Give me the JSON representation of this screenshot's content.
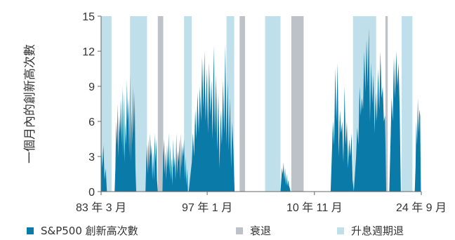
{
  "colors": {
    "series": "#0a7ba8",
    "recession": "#bcc2c7",
    "hike": "#bfe0ea",
    "axis": "#666666",
    "text": "#333333"
  },
  "chart_data": {
    "type": "area",
    "title": "",
    "ylabel": "一個月內的創新高次數",
    "xlabel": "",
    "ylim": [
      0,
      15
    ],
    "yticks": [
      0,
      3,
      6,
      9,
      12,
      15
    ],
    "xlim": [
      1983.25,
      2024.75
    ],
    "xticks": [
      {
        "x": 1983.25,
        "label": "83 年 3 月"
      },
      {
        "x": 1997.0,
        "label": "97 年 1 月"
      },
      {
        "x": 2010.9,
        "label": "10 年 11 月"
      },
      {
        "x": 2024.75,
        "label": "24 年 9 月"
      }
    ],
    "grid": false,
    "legend_placement": "bottom",
    "bands": [
      {
        "type": "hike",
        "start": 1983.3,
        "end": 1984.6
      },
      {
        "type": "hike",
        "start": 1987.0,
        "end": 1989.2
      },
      {
        "type": "recession",
        "start": 1990.6,
        "end": 1991.3
      },
      {
        "type": "hike",
        "start": 1994.0,
        "end": 1995.0
      },
      {
        "type": "hike",
        "start": 1999.5,
        "end": 2000.5
      },
      {
        "type": "recession",
        "start": 2001.2,
        "end": 2001.9
      },
      {
        "type": "hike",
        "start": 2004.5,
        "end": 2006.5
      },
      {
        "type": "recession",
        "start": 2007.9,
        "end": 2009.5
      },
      {
        "type": "hike",
        "start": 2015.9,
        "end": 2018.9
      },
      {
        "type": "recession",
        "start": 2020.1,
        "end": 2020.4
      },
      {
        "type": "hike",
        "start": 2022.2,
        "end": 2023.6
      }
    ],
    "series": [
      {
        "name": "S&P500 創新高次數",
        "x": [
          1983.25,
          1983.4,
          1983.55,
          1983.7,
          1983.85,
          1984.0,
          1984.5,
          1985.0,
          1985.1,
          1985.2,
          1985.3,
          1985.4,
          1985.5,
          1985.6,
          1985.7,
          1985.8,
          1985.9,
          1986.0,
          1986.1,
          1986.2,
          1986.3,
          1986.4,
          1986.5,
          1986.6,
          1986.7,
          1986.8,
          1986.9,
          1987.0,
          1987.1,
          1987.2,
          1987.3,
          1987.4,
          1987.5,
          1987.6,
          1987.7,
          1987.8,
          1988.5,
          1989.0,
          1989.1,
          1989.2,
          1989.3,
          1989.4,
          1989.5,
          1989.6,
          1989.7,
          1989.8,
          1989.9,
          1990.0,
          1990.1,
          1990.2,
          1990.3,
          1990.4,
          1990.5,
          1990.6,
          1991.0,
          1991.2,
          1991.3,
          1991.4,
          1991.5,
          1991.6,
          1991.7,
          1991.8,
          1991.9,
          1992.0,
          1992.1,
          1992.2,
          1992.3,
          1992.4,
          1992.5,
          1992.6,
          1992.7,
          1992.8,
          1992.9,
          1993.0,
          1993.1,
          1993.2,
          1993.3,
          1993.4,
          1993.5,
          1993.6,
          1993.7,
          1993.8,
          1993.9,
          1994.0,
          1994.1,
          1994.2,
          1994.3,
          1994.4,
          1994.5,
          1994.6,
          1995.0,
          1995.15,
          1995.3,
          1995.45,
          1995.6,
          1995.75,
          1995.9,
          1996.05,
          1996.2,
          1996.35,
          1996.5,
          1996.65,
          1996.8,
          1996.95,
          1997.1,
          1997.25,
          1997.4,
          1997.55,
          1997.7,
          1997.85,
          1998.0,
          1998.15,
          1998.3,
          1998.45,
          1998.6,
          1998.75,
          1998.9,
          1999.05,
          1999.2,
          1999.35,
          1999.5,
          1999.65,
          1999.8,
          1999.95,
          2000.1,
          2000.25,
          2000.4,
          2000.55,
          2004.3,
          2006.5,
          2006.6,
          2006.7,
          2006.8,
          2006.9,
          2007.0,
          2007.1,
          2007.2,
          2007.3,
          2007.4,
          2007.5,
          2007.6,
          2007.7,
          2007.8,
          2013.0,
          2013.15,
          2013.3,
          2013.45,
          2013.6,
          2013.75,
          2013.9,
          2014.05,
          2014.2,
          2014.35,
          2014.5,
          2014.65,
          2014.8,
          2014.95,
          2015.1,
          2015.25,
          2015.4,
          2015.55,
          2015.7,
          2015.85,
          2016.0,
          2016.3,
          2016.45,
          2016.6,
          2016.75,
          2016.9,
          2017.05,
          2017.2,
          2017.35,
          2017.5,
          2017.65,
          2017.8,
          2017.95,
          2018.1,
          2018.25,
          2018.4,
          2018.55,
          2018.7,
          2018.85,
          2019.0,
          2019.15,
          2019.3,
          2019.45,
          2019.6,
          2019.75,
          2019.9,
          2020.05,
          2020.2,
          2020.6,
          2020.75,
          2020.9,
          2021.05,
          2021.2,
          2021.35,
          2021.5,
          2021.65,
          2021.8,
          2021.95,
          2022.1,
          2023.9,
          2024.0,
          2024.1,
          2024.2,
          2024.3,
          2024.4,
          2024.5,
          2024.6,
          2024.7
        ],
        "values": [
          4.0,
          2.0,
          4.0,
          1.0,
          2.0,
          0.0,
          0.0,
          0.0,
          2.0,
          6.0,
          4.0,
          7.5,
          3.0,
          6.5,
          5.0,
          8.0,
          4.0,
          9.0,
          3.0,
          8.5,
          2.5,
          6.0,
          4.0,
          9.5,
          6.0,
          8.0,
          3.0,
          10.0,
          2.5,
          7.0,
          4.0,
          9.0,
          5.0,
          8.5,
          2.0,
          0.0,
          0.0,
          0.0,
          2.5,
          4.0,
          1.5,
          4.5,
          2.0,
          5.0,
          3.0,
          4.0,
          1.0,
          3.5,
          1.0,
          5.0,
          2.5,
          4.5,
          1.0,
          0.0,
          0.0,
          0.0,
          3.0,
          4.5,
          1.5,
          3.5,
          1.0,
          4.0,
          2.0,
          5.0,
          1.5,
          4.0,
          1.0,
          3.0,
          0.5,
          4.5,
          2.0,
          3.0,
          1.0,
          5.0,
          1.5,
          3.5,
          2.5,
          4.5,
          1.0,
          5.0,
          2.0,
          4.0,
          3.0,
          4.5,
          1.0,
          3.0,
          0.5,
          2.0,
          0.0,
          0.0,
          2.5,
          5.0,
          3.0,
          7.0,
          4.5,
          8.5,
          5.0,
          9.0,
          6.0,
          11.5,
          7.0,
          12.0,
          6.0,
          10.5,
          5.0,
          11.0,
          6.5,
          9.5,
          4.5,
          12.5,
          5.0,
          10.0,
          3.5,
          8.5,
          2.0,
          7.0,
          4.0,
          9.5,
          5.0,
          12.5,
          4.0,
          9.5,
          3.5,
          8.0,
          2.0,
          6.0,
          3.5,
          0.0,
          0.0,
          0.0,
          1.0,
          2.0,
          1.5,
          2.5,
          1.0,
          2.0,
          0.5,
          1.5,
          0.5,
          1.0,
          0.5,
          0.3,
          0.0,
          0.0,
          3.0,
          6.0,
          4.0,
          10.5,
          6.0,
          11.0,
          3.0,
          7.0,
          5.0,
          6.0,
          2.5,
          9.0,
          4.0,
          6.0,
          2.0,
          4.5,
          3.0,
          5.0,
          1.0,
          0.0,
          3.0,
          5.5,
          4.0,
          9.0,
          6.5,
          8.0,
          7.0,
          12.0,
          8.5,
          13.0,
          9.0,
          14.0,
          6.0,
          11.0,
          7.5,
          10.0,
          5.0,
          8.5,
          6.0,
          10.5,
          7.0,
          12.0,
          8.0,
          9.0,
          6.0,
          6.5,
          0.0,
          0.0,
          4.0,
          8.0,
          6.0,
          11.5,
          8.0,
          12.0,
          9.0,
          11.0,
          7.0,
          0.0,
          0.0,
          2.0,
          6.0,
          4.0,
          8.0,
          5.0,
          7.0,
          6.5,
          0.0
        ]
      }
    ],
    "legend": [
      {
        "key": "series",
        "label": "S&P500 創新高次數"
      },
      {
        "key": "recession",
        "label": "衰退"
      },
      {
        "key": "hike",
        "label": "升息週期退"
      }
    ]
  }
}
